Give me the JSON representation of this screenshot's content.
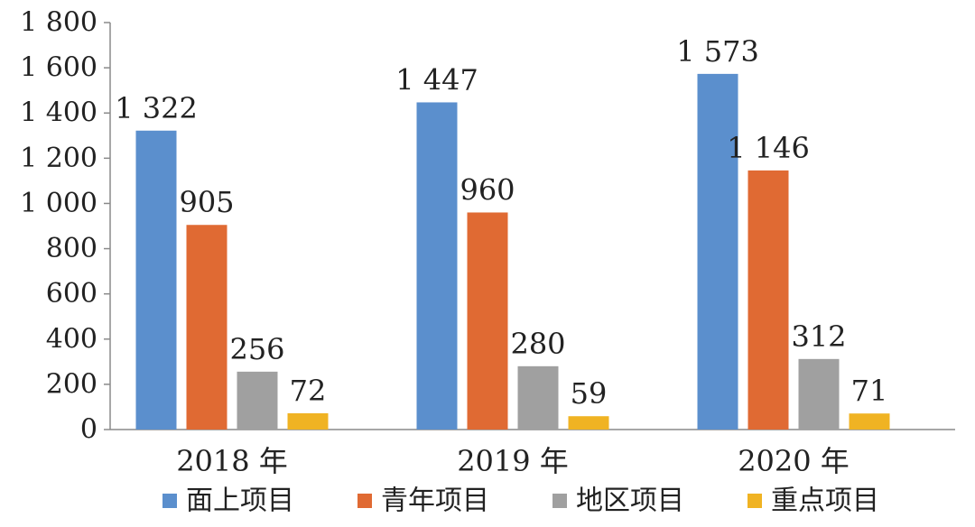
{
  "chart_data": {
    "type": "bar",
    "categories": [
      "2018 年",
      "2019 年",
      "2020 年"
    ],
    "series": [
      {
        "name": "面上项目",
        "color": "#5B8FCD",
        "values": [
          1322,
          1447,
          1573
        ],
        "value_labels": [
          "1 322",
          "1 447",
          "1 573"
        ]
      },
      {
        "name": "青年项目",
        "color": "#E06A33",
        "values": [
          905,
          960,
          1146
        ],
        "value_labels": [
          "905",
          "960",
          "1 146"
        ]
      },
      {
        "name": "地区项目",
        "color": "#A0A0A0",
        "values": [
          256,
          280,
          312
        ],
        "value_labels": [
          "256",
          "280",
          "312"
        ]
      },
      {
        "name": "重点项目",
        "color": "#F0B323",
        "values": [
          72,
          59,
          71
        ],
        "value_labels": [
          "72",
          "59",
          "71"
        ]
      }
    ],
    "ylim": [
      0,
      1800
    ],
    "yticks": [
      0,
      200,
      400,
      600,
      800,
      1000,
      1200,
      1400,
      1600,
      1800
    ],
    "ytick_labels": [
      "0",
      "200",
      "400",
      "600",
      "800",
      "1 000",
      "1 200",
      "1 400",
      "1 600",
      "1 800"
    ],
    "title": "",
    "xlabel": "",
    "ylabel": "",
    "grid": false,
    "legend_position": "bottom"
  }
}
